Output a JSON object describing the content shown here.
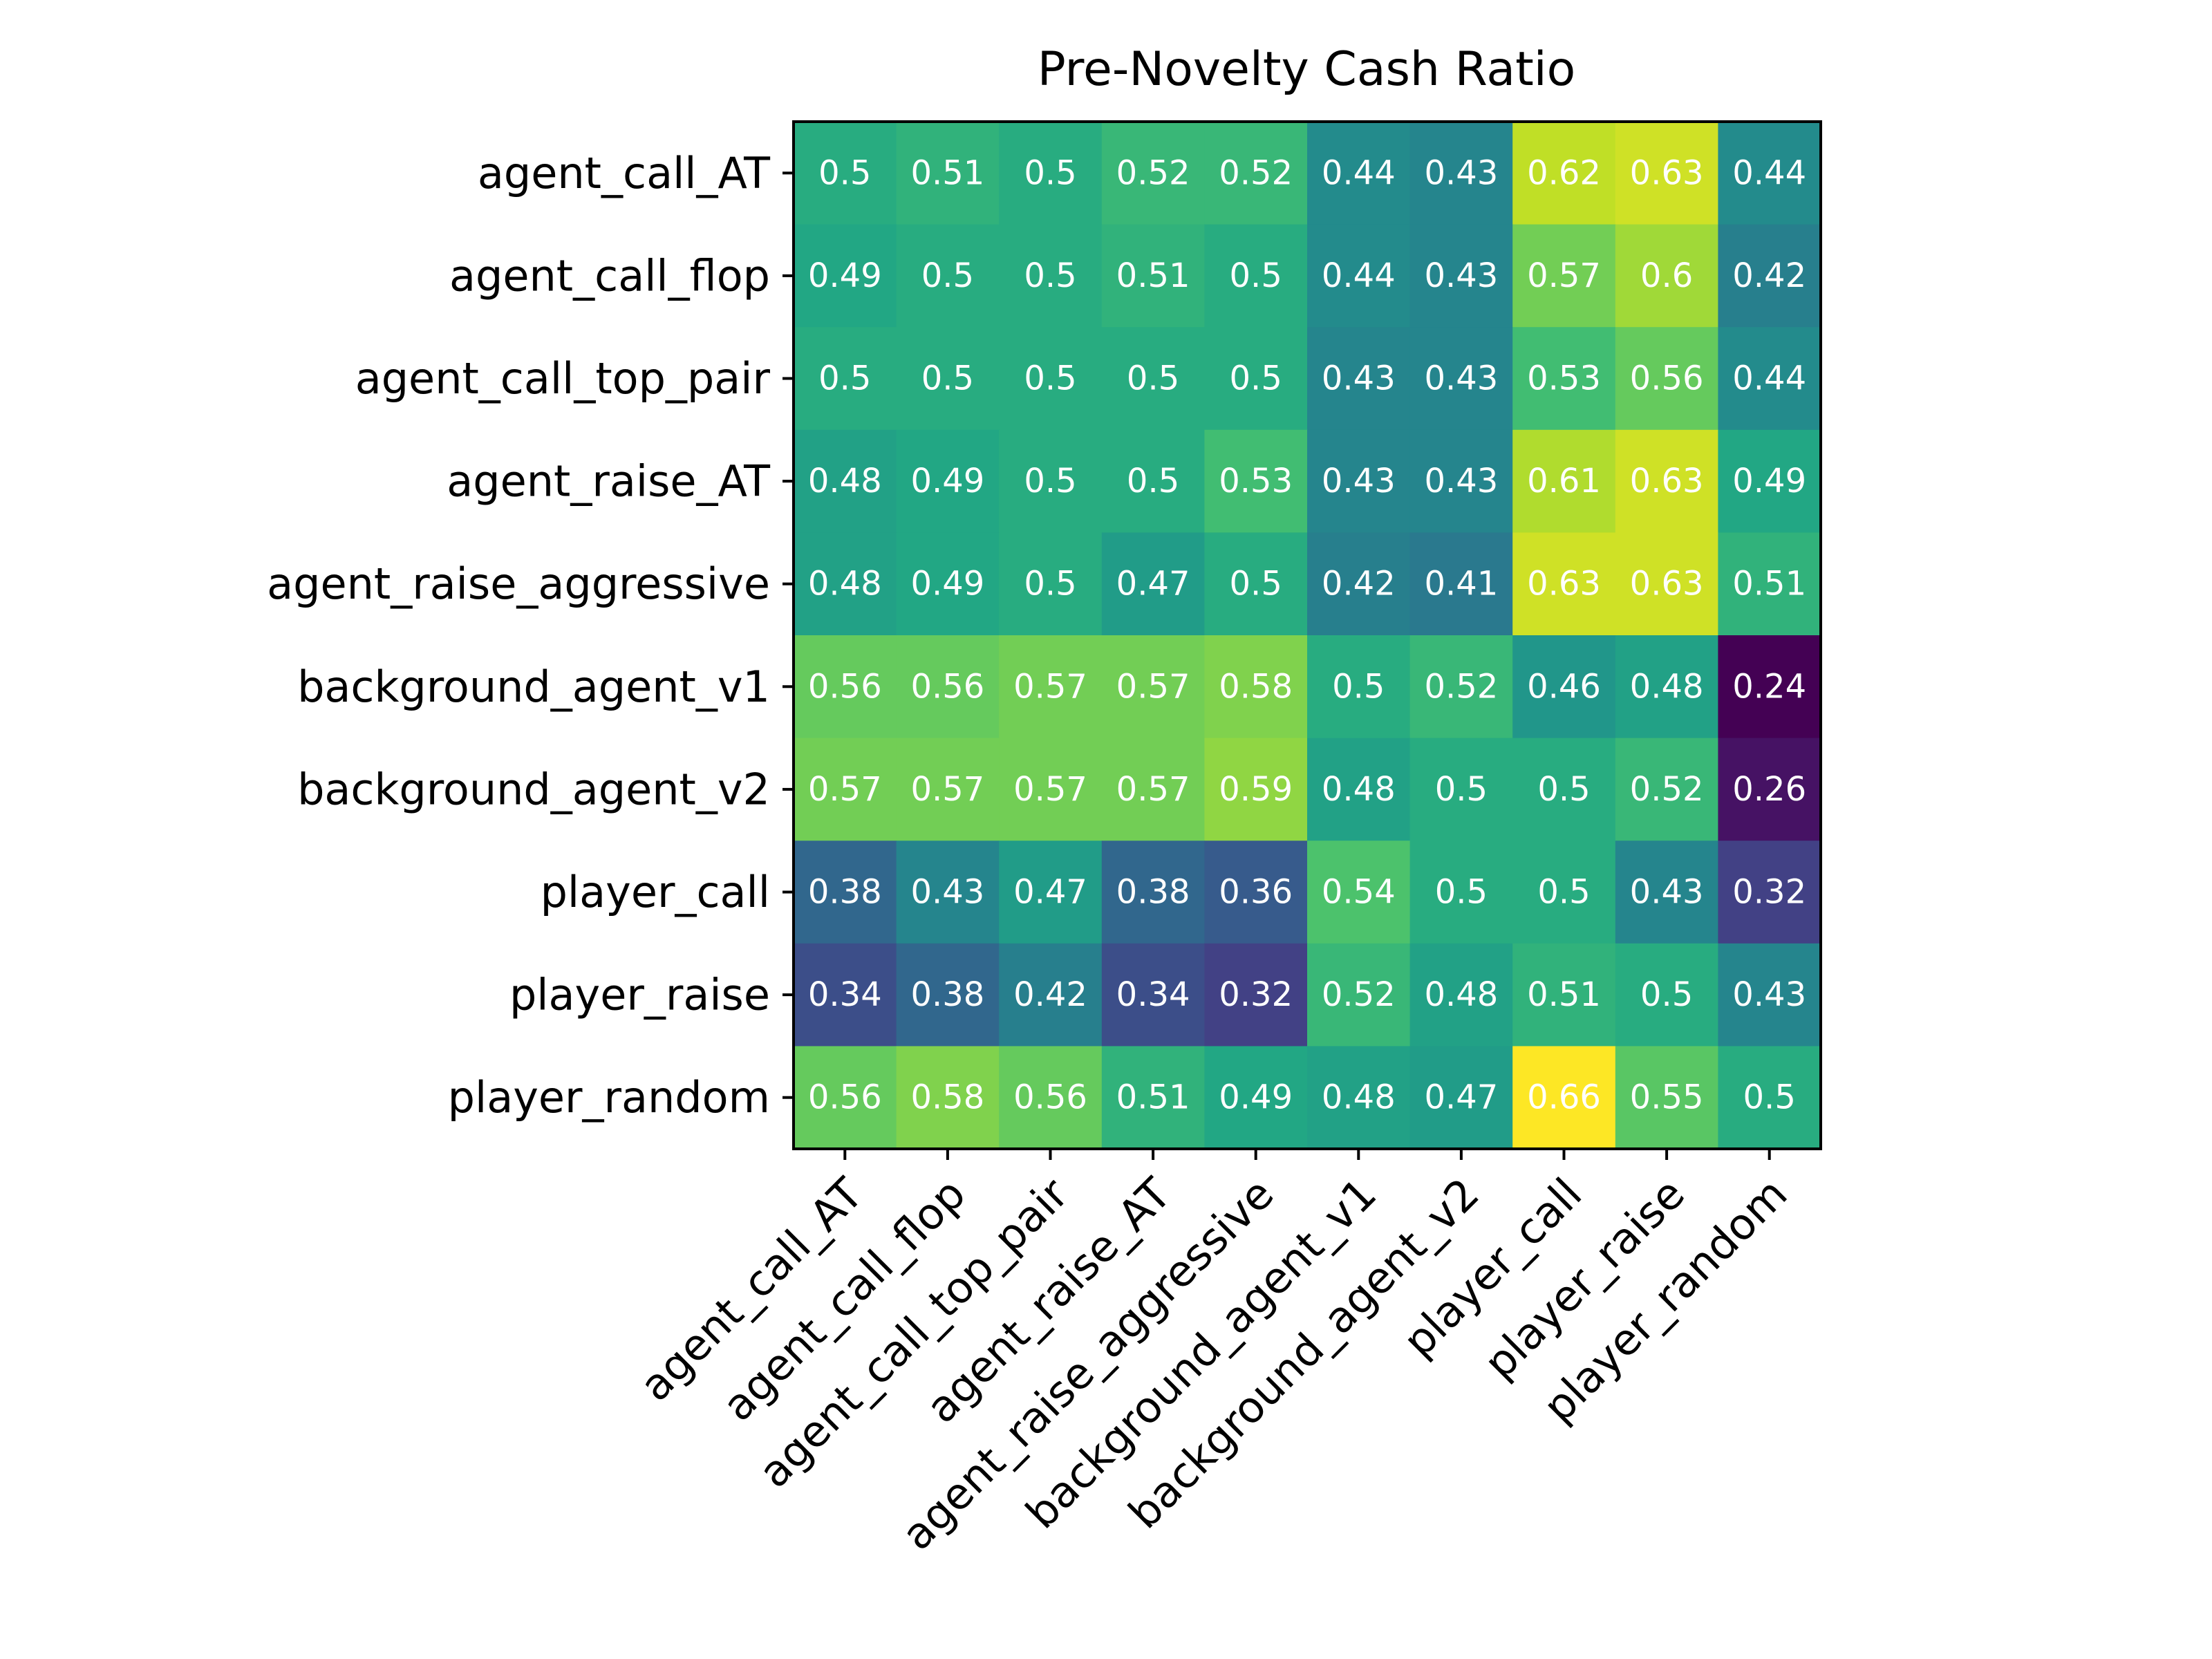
{
  "chart_data": {
    "type": "heatmap",
    "title": "Pre-Novelty Cash Ratio",
    "xlabel": "",
    "ylabel": "",
    "rows": [
      "agent_call_AT",
      "agent_call_flop",
      "agent_call_top_pair",
      "agent_raise_AT",
      "agent_raise_aggressive",
      "background_agent_v1",
      "background_agent_v2",
      "player_call",
      "player_raise",
      "player_random"
    ],
    "columns": [
      "agent_call_AT",
      "agent_call_flop",
      "agent_call_top_pair",
      "agent_raise_AT",
      "agent_raise_aggressive",
      "background_agent_v1",
      "background_agent_v2",
      "player_call",
      "player_raise",
      "player_random"
    ],
    "values": [
      [
        0.5,
        0.51,
        0.5,
        0.52,
        0.52,
        0.44,
        0.43,
        0.62,
        0.63,
        0.44
      ],
      [
        0.49,
        0.5,
        0.5,
        0.51,
        0.5,
        0.44,
        0.43,
        0.57,
        0.6,
        0.42
      ],
      [
        0.5,
        0.5,
        0.5,
        0.5,
        0.5,
        0.43,
        0.43,
        0.53,
        0.56,
        0.44
      ],
      [
        0.48,
        0.49,
        0.5,
        0.5,
        0.53,
        0.43,
        0.43,
        0.61,
        0.63,
        0.49
      ],
      [
        0.48,
        0.49,
        0.5,
        0.47,
        0.5,
        0.42,
        0.41,
        0.63,
        0.63,
        0.51
      ],
      [
        0.56,
        0.56,
        0.57,
        0.57,
        0.58,
        0.5,
        0.52,
        0.46,
        0.48,
        0.24
      ],
      [
        0.57,
        0.57,
        0.57,
        0.57,
        0.59,
        0.48,
        0.5,
        0.5,
        0.52,
        0.26
      ],
      [
        0.38,
        0.43,
        0.47,
        0.38,
        0.36,
        0.54,
        0.5,
        0.5,
        0.43,
        0.32
      ],
      [
        0.34,
        0.38,
        0.42,
        0.34,
        0.32,
        0.52,
        0.48,
        0.51,
        0.5,
        0.43
      ],
      [
        0.56,
        0.58,
        0.56,
        0.51,
        0.49,
        0.48,
        0.47,
        0.66,
        0.55,
        0.5
      ]
    ],
    "value_range": [
      0.24,
      0.66
    ],
    "colormap": "viridis",
    "cell_text_color": "#ffffff",
    "grid": false,
    "legend": "none"
  }
}
